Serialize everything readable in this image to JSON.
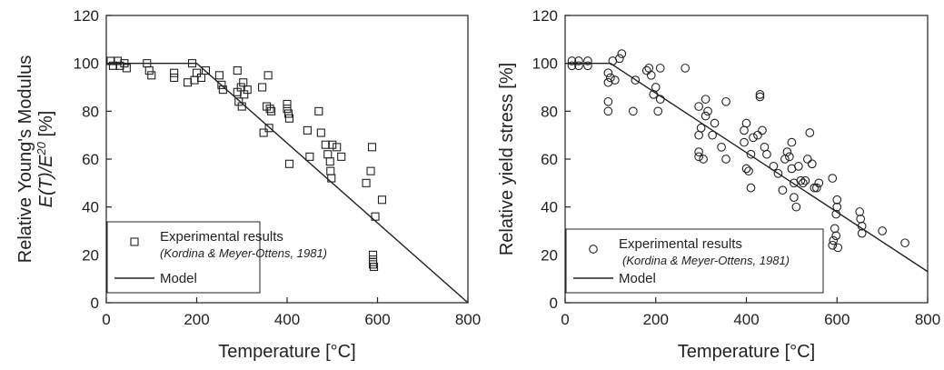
{
  "chart_data": [
    {
      "type": "scatter",
      "title": "",
      "xlabel": "Temperature [°C]",
      "ylabel_line1": "Relative Young's Modulus",
      "ylabel_line2_prefix": "E(T)/E",
      "ylabel_line2_sup": "20",
      "ylabel_line2_suffix": " [%]",
      "xlim": [
        0,
        800
      ],
      "ylim": [
        0,
        120
      ],
      "xticks": [
        0,
        200,
        400,
        600,
        800
      ],
      "yticks": [
        0,
        20,
        40,
        60,
        80,
        100,
        120
      ],
      "grid": false,
      "legend_position": "bottom-left",
      "marker": "square",
      "series": [
        {
          "name": "Experimental results",
          "note": "(Kordina & Meyer-Ottens, 1981)",
          "points": [
            [
              10,
              101
            ],
            [
              15,
              99
            ],
            [
              25,
              101
            ],
            [
              30,
              99
            ],
            [
              40,
              100
            ],
            [
              45,
              98
            ],
            [
              90,
              100
            ],
            [
              95,
              97
            ],
            [
              100,
              95
            ],
            [
              150,
              96
            ],
            [
              150,
              94
            ],
            [
              180,
              92
            ],
            [
              190,
              100
            ],
            [
              195,
              93
            ],
            [
              200,
              96
            ],
            [
              210,
              94
            ],
            [
              220,
              97
            ],
            [
              250,
              95
            ],
            [
              255,
              91
            ],
            [
              258,
              89
            ],
            [
              290,
              97
            ],
            [
              290,
              88
            ],
            [
              293,
              84
            ],
            [
              298,
              90
            ],
            [
              300,
              82
            ],
            [
              303,
              92
            ],
            [
              305,
              87
            ],
            [
              312,
              89
            ],
            [
              345,
              90
            ],
            [
              348,
              71
            ],
            [
              355,
              82
            ],
            [
              358,
              95
            ],
            [
              360,
              73
            ],
            [
              362,
              81
            ],
            [
              365,
              80
            ],
            [
              400,
              83
            ],
            [
              400,
              81
            ],
            [
              403,
              79
            ],
            [
              405,
              77
            ],
            [
              405,
              58
            ],
            [
              445,
              72
            ],
            [
              450,
              61
            ],
            [
              470,
              80
            ],
            [
              475,
              71
            ],
            [
              485,
              66
            ],
            [
              490,
              62
            ],
            [
              495,
              59
            ],
            [
              496,
              55
            ],
            [
              498,
              52
            ],
            [
              500,
              66
            ],
            [
              510,
              65
            ],
            [
              520,
              61
            ],
            [
              575,
              50
            ],
            [
              585,
              55
            ],
            [
              588,
              65
            ],
            [
              590,
              20
            ],
            [
              590,
              18
            ],
            [
              590,
              17
            ],
            [
              590,
              16
            ],
            [
              592,
              15
            ],
            [
              595,
              36
            ],
            [
              610,
              43
            ]
          ]
        },
        {
          "name": "Model",
          "line": [
            [
              0,
              100
            ],
            [
              200,
              100
            ],
            [
              800,
              0
            ]
          ]
        }
      ]
    },
    {
      "type": "scatter",
      "title": "",
      "xlabel": "Temperature [°C]",
      "ylabel": "Relative yield stress [%]",
      "xlim": [
        0,
        800
      ],
      "ylim": [
        0,
        120
      ],
      "xticks": [
        0,
        200,
        400,
        600,
        800
      ],
      "yticks": [
        0,
        20,
        40,
        60,
        80,
        100,
        120
      ],
      "grid": false,
      "legend_position": "bottom-left",
      "marker": "circle",
      "series": [
        {
          "name": "Experimental results",
          "note": "(Kordina & Meyer-Ottens, 1981)",
          "points": [
            [
              15,
              101
            ],
            [
              15,
              99
            ],
            [
              30,
              101
            ],
            [
              30,
              99
            ],
            [
              50,
              101
            ],
            [
              50,
              99
            ],
            [
              95,
              96
            ],
            [
              95,
              92
            ],
            [
              95,
              84
            ],
            [
              95,
              80
            ],
            [
              100,
              94
            ],
            [
              105,
              101
            ],
            [
              110,
              93
            ],
            [
              120,
              102
            ],
            [
              125,
              104
            ],
            [
              150,
              80
            ],
            [
              155,
              93
            ],
            [
              180,
              97
            ],
            [
              185,
              98
            ],
            [
              190,
              95
            ],
            [
              195,
              87
            ],
            [
              200,
              90
            ],
            [
              205,
              80
            ],
            [
              210,
              85
            ],
            [
              210,
              98
            ],
            [
              265,
              98
            ],
            [
              295,
              82
            ],
            [
              295,
              70
            ],
            [
              295,
              63
            ],
            [
              295,
              61
            ],
            [
              300,
              73
            ],
            [
              305,
              60
            ],
            [
              310,
              85
            ],
            [
              310,
              78
            ],
            [
              315,
              80
            ],
            [
              325,
              70
            ],
            [
              330,
              75
            ],
            [
              345,
              65
            ],
            [
              355,
              60
            ],
            [
              355,
              84
            ],
            [
              395,
              72
            ],
            [
              395,
              67
            ],
            [
              400,
              75
            ],
            [
              400,
              56
            ],
            [
              405,
              55
            ],
            [
              410,
              48
            ],
            [
              410,
              62
            ],
            [
              415,
              69
            ],
            [
              425,
              70
            ],
            [
              430,
              87
            ],
            [
              430,
              86
            ],
            [
              435,
              72
            ],
            [
              440,
              65
            ],
            [
              445,
              62
            ],
            [
              460,
              57
            ],
            [
              470,
              54
            ],
            [
              480,
              47
            ],
            [
              485,
              60
            ],
            [
              490,
              63
            ],
            [
              495,
              61
            ],
            [
              500,
              67
            ],
            [
              500,
              56
            ],
            [
              505,
              44
            ],
            [
              505,
              50
            ],
            [
              510,
              40
            ],
            [
              515,
              57
            ],
            [
              520,
              51
            ],
            [
              525,
              50
            ],
            [
              530,
              51
            ],
            [
              535,
              60
            ],
            [
              540,
              71
            ],
            [
              545,
              58
            ],
            [
              550,
              48
            ],
            [
              555,
              48
            ],
            [
              560,
              50
            ],
            [
              590,
              52
            ],
            [
              590,
              24
            ],
            [
              592,
              26
            ],
            [
              595,
              31
            ],
            [
              598,
              28
            ],
            [
              598,
              37
            ],
            [
              600,
              40
            ],
            [
              600,
              43
            ],
            [
              602,
              23
            ],
            [
              650,
              38
            ],
            [
              652,
              35
            ],
            [
              655,
              32
            ],
            [
              655,
              29
            ],
            [
              700,
              30
            ],
            [
              750,
              25
            ]
          ]
        },
        {
          "name": "Model",
          "line": [
            [
              0,
              100
            ],
            [
              100,
              100
            ],
            [
              800,
              13
            ]
          ]
        }
      ]
    }
  ]
}
